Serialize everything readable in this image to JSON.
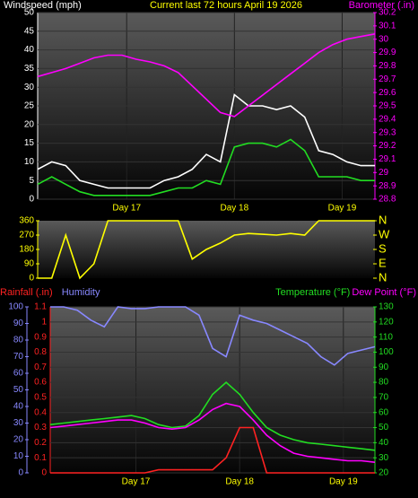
{
  "chart_data": [
    {
      "type": "line",
      "title": "Current last 72 hours April 19 2026",
      "title_color": "#ffff00",
      "y_label": "Windspeed (mph)",
      "y_color": "#ffffff",
      "y2_label": "Barometer (.in)",
      "y2_color": "#ff00ff",
      "x": [
        0,
        3,
        6,
        9,
        12,
        15,
        18,
        21,
        24,
        27,
        30,
        33,
        36,
        39,
        42,
        45,
        48,
        51,
        54,
        57,
        60,
        63,
        66,
        69,
        72
      ],
      "xlim": [
        0,
        72
      ],
      "xticks": [
        {
          "value": 19,
          "label": "Day 17"
        },
        {
          "value": 42,
          "label": "Day 18"
        },
        {
          "value": 65,
          "label": "Day 19"
        }
      ],
      "ylim": [
        0,
        50
      ],
      "yticks": [
        0,
        5,
        10,
        15,
        20,
        25,
        30,
        35,
        40,
        45,
        50
      ],
      "y2lim": [
        28.8,
        30.2
      ],
      "y2ticks": [
        28.8,
        28.9,
        29,
        29.1,
        29.2,
        29.3,
        29.4,
        29.5,
        29.6,
        29.7,
        29.8,
        29.9,
        30,
        30.1,
        30.2
      ],
      "grid": true,
      "series": [
        {
          "color": "#ffffff",
          "axis": "y",
          "values": [
            8,
            10,
            9,
            5,
            4,
            3,
            3,
            3,
            3,
            5,
            6,
            8,
            12,
            10,
            28,
            25,
            25,
            24,
            25,
            22,
            13,
            12,
            10,
            9,
            9
          ]
        },
        {
          "color": "#22dd22",
          "axis": "y",
          "values": [
            4,
            6,
            4,
            2,
            1,
            1,
            1,
            1,
            1,
            2,
            3,
            3,
            5,
            4,
            14,
            15,
            15,
            14,
            16,
            13,
            6,
            6,
            6,
            5,
            5
          ]
        },
        {
          "color": "#ff00ff",
          "axis": "y2",
          "values": [
            29.72,
            29.75,
            29.78,
            29.82,
            29.86,
            29.88,
            29.88,
            29.85,
            29.83,
            29.8,
            29.75,
            29.65,
            29.55,
            29.45,
            29.42,
            29.5,
            29.58,
            29.66,
            29.74,
            29.82,
            29.9,
            29.96,
            30,
            30.02,
            30.04
          ]
        }
      ]
    },
    {
      "type": "line",
      "y_color": "#ffff00",
      "y2_color": "#ffff00",
      "x": [
        0,
        3,
        6,
        9,
        12,
        15,
        18,
        21,
        24,
        27,
        30,
        33,
        36,
        39,
        42,
        45,
        48,
        51,
        54,
        57,
        60,
        63,
        66,
        69,
        72
      ],
      "xlim": [
        0,
        72
      ],
      "ylim": [
        0,
        360
      ],
      "yticks": [
        0,
        90,
        180,
        270,
        360
      ],
      "y2lim": [
        0,
        360
      ],
      "y2ticks": [
        {
          "value": 0,
          "label": "N"
        },
        {
          "value": 90,
          "label": "E"
        },
        {
          "value": 180,
          "label": "S"
        },
        {
          "value": 270,
          "label": "W"
        },
        {
          "value": 360,
          "label": "N"
        }
      ],
      "grid": false,
      "series": [
        {
          "color": "#ffff00",
          "axis": "y",
          "values": [
            0,
            0,
            270,
            0,
            90,
            360,
            360,
            360,
            360,
            360,
            360,
            120,
            180,
            220,
            270,
            280,
            275,
            270,
            280,
            270,
            360,
            360,
            360,
            360,
            360
          ]
        }
      ]
    },
    {
      "type": "line",
      "y_color": "#ff2222",
      "y3_color": "#8888ff",
      "y2_color": "#22dd22",
      "x": [
        0,
        3,
        6,
        9,
        12,
        15,
        18,
        21,
        24,
        27,
        30,
        33,
        36,
        39,
        42,
        45,
        48,
        51,
        54,
        57,
        60,
        63,
        66,
        69,
        72
      ],
      "xlim": [
        0,
        72
      ],
      "xticks": [
        {
          "value": 19,
          "label": "Day 17"
        },
        {
          "value": 42,
          "label": "Day 18"
        },
        {
          "value": 65,
          "label": "Day 19"
        }
      ],
      "ylim": [
        0,
        1.1
      ],
      "yticks": [
        0,
        0.1,
        0.2,
        0.3,
        0.4,
        0.5,
        0.6,
        0.7,
        0.8,
        0.9,
        1,
        1.1
      ],
      "y3lim": [
        0,
        100
      ],
      "y3ticks": [
        0,
        10,
        20,
        30,
        40,
        50,
        60,
        70,
        80,
        90,
        100
      ],
      "y2lim": [
        20,
        130
      ],
      "y2ticks": [
        20,
        30,
        40,
        50,
        60,
        70,
        80,
        90,
        100,
        110,
        120,
        130
      ],
      "grid": true,
      "series": [
        {
          "name": "Rainfall (.in)",
          "color": "#ff2222",
          "axis": "y",
          "values": [
            0,
            0,
            0,
            0,
            0,
            0,
            0,
            0,
            0.02,
            0.02,
            0.02,
            0.02,
            0.02,
            0.1,
            0.3,
            0.3,
            0,
            0,
            0,
            0,
            0,
            0,
            0,
            0,
            0
          ]
        },
        {
          "name": "Humidity",
          "color": "#8888ff",
          "axis": "y3",
          "values": [
            100,
            100,
            98,
            92,
            88,
            100,
            99,
            99,
            100,
            100,
            100,
            95,
            75,
            70,
            95,
            92,
            90,
            86,
            82,
            78,
            70,
            65,
            72,
            74,
            76
          ]
        },
        {
          "name": "Temperature (°F)",
          "color": "#22dd22",
          "axis": "y2",
          "values": [
            52,
            53,
            54,
            55,
            56,
            57,
            58,
            56,
            52,
            50,
            51,
            58,
            72,
            80,
            72,
            60,
            50,
            45,
            42,
            40,
            39,
            38,
            37,
            36,
            35
          ]
        },
        {
          "name": "Dew Point (°F)",
          "color": "#ff00ff",
          "axis": "y2",
          "values": [
            50,
            51,
            52,
            53,
            54,
            55,
            55,
            53,
            50,
            49,
            50,
            55,
            62,
            66,
            64,
            55,
            45,
            38,
            33,
            31,
            30,
            29,
            28,
            28,
            27
          ]
        }
      ]
    }
  ]
}
